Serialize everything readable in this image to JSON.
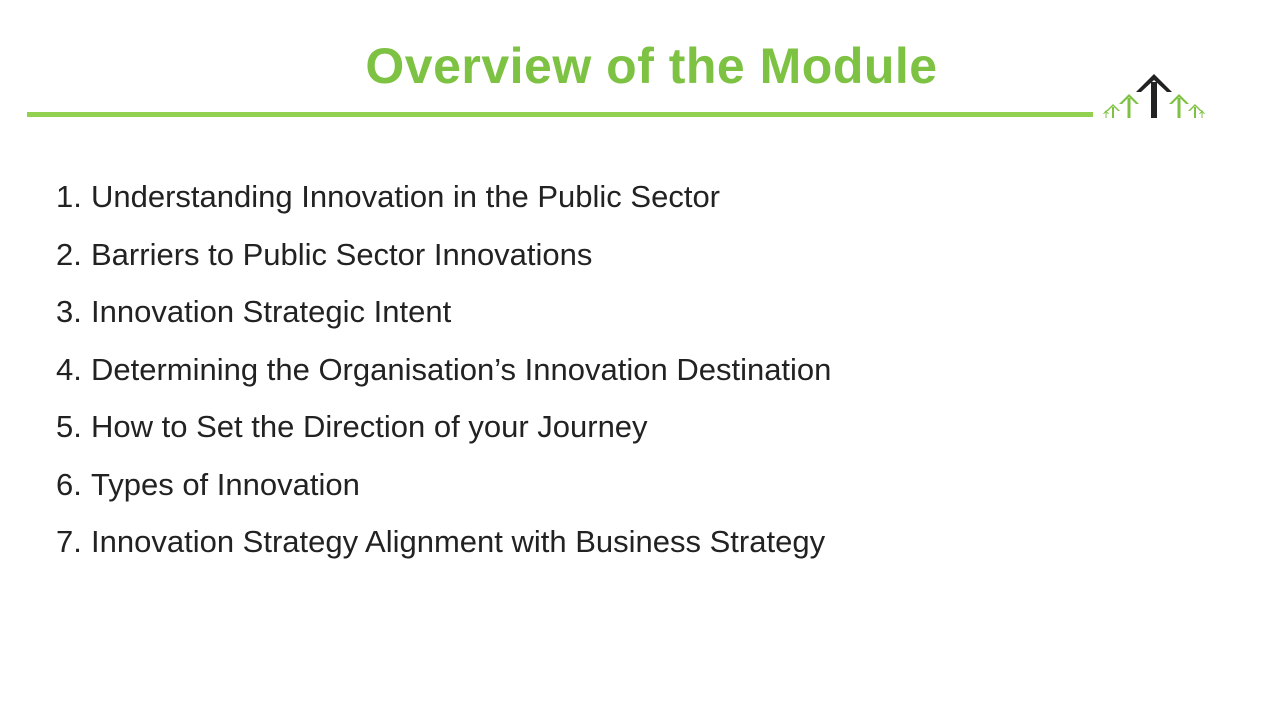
{
  "slide": {
    "title": "Overview of the Module",
    "accent_color": "#7dc242",
    "rule_color": "#92d050",
    "text_color": "#222222"
  },
  "logo": {
    "icon": "arrows-up-logo-icon"
  },
  "modules": [
    {
      "number": "1.",
      "text": "Understanding Innovation in the Public Sector"
    },
    {
      "number": "2.",
      "text": "Barriers to Public Sector Innovations"
    },
    {
      "number": "3.",
      "text": "Innovation Strategic Intent"
    },
    {
      "number": "4.",
      "text": "Determining the Organisation’s Innovation Destination"
    },
    {
      "number": "5.",
      "text": "How to Set the Direction of your Journey"
    },
    {
      "number": "6.",
      "text": "Types of Innovation"
    },
    {
      "number": "7.",
      "text": "Innovation Strategy Alignment with Business Strategy"
    }
  ]
}
